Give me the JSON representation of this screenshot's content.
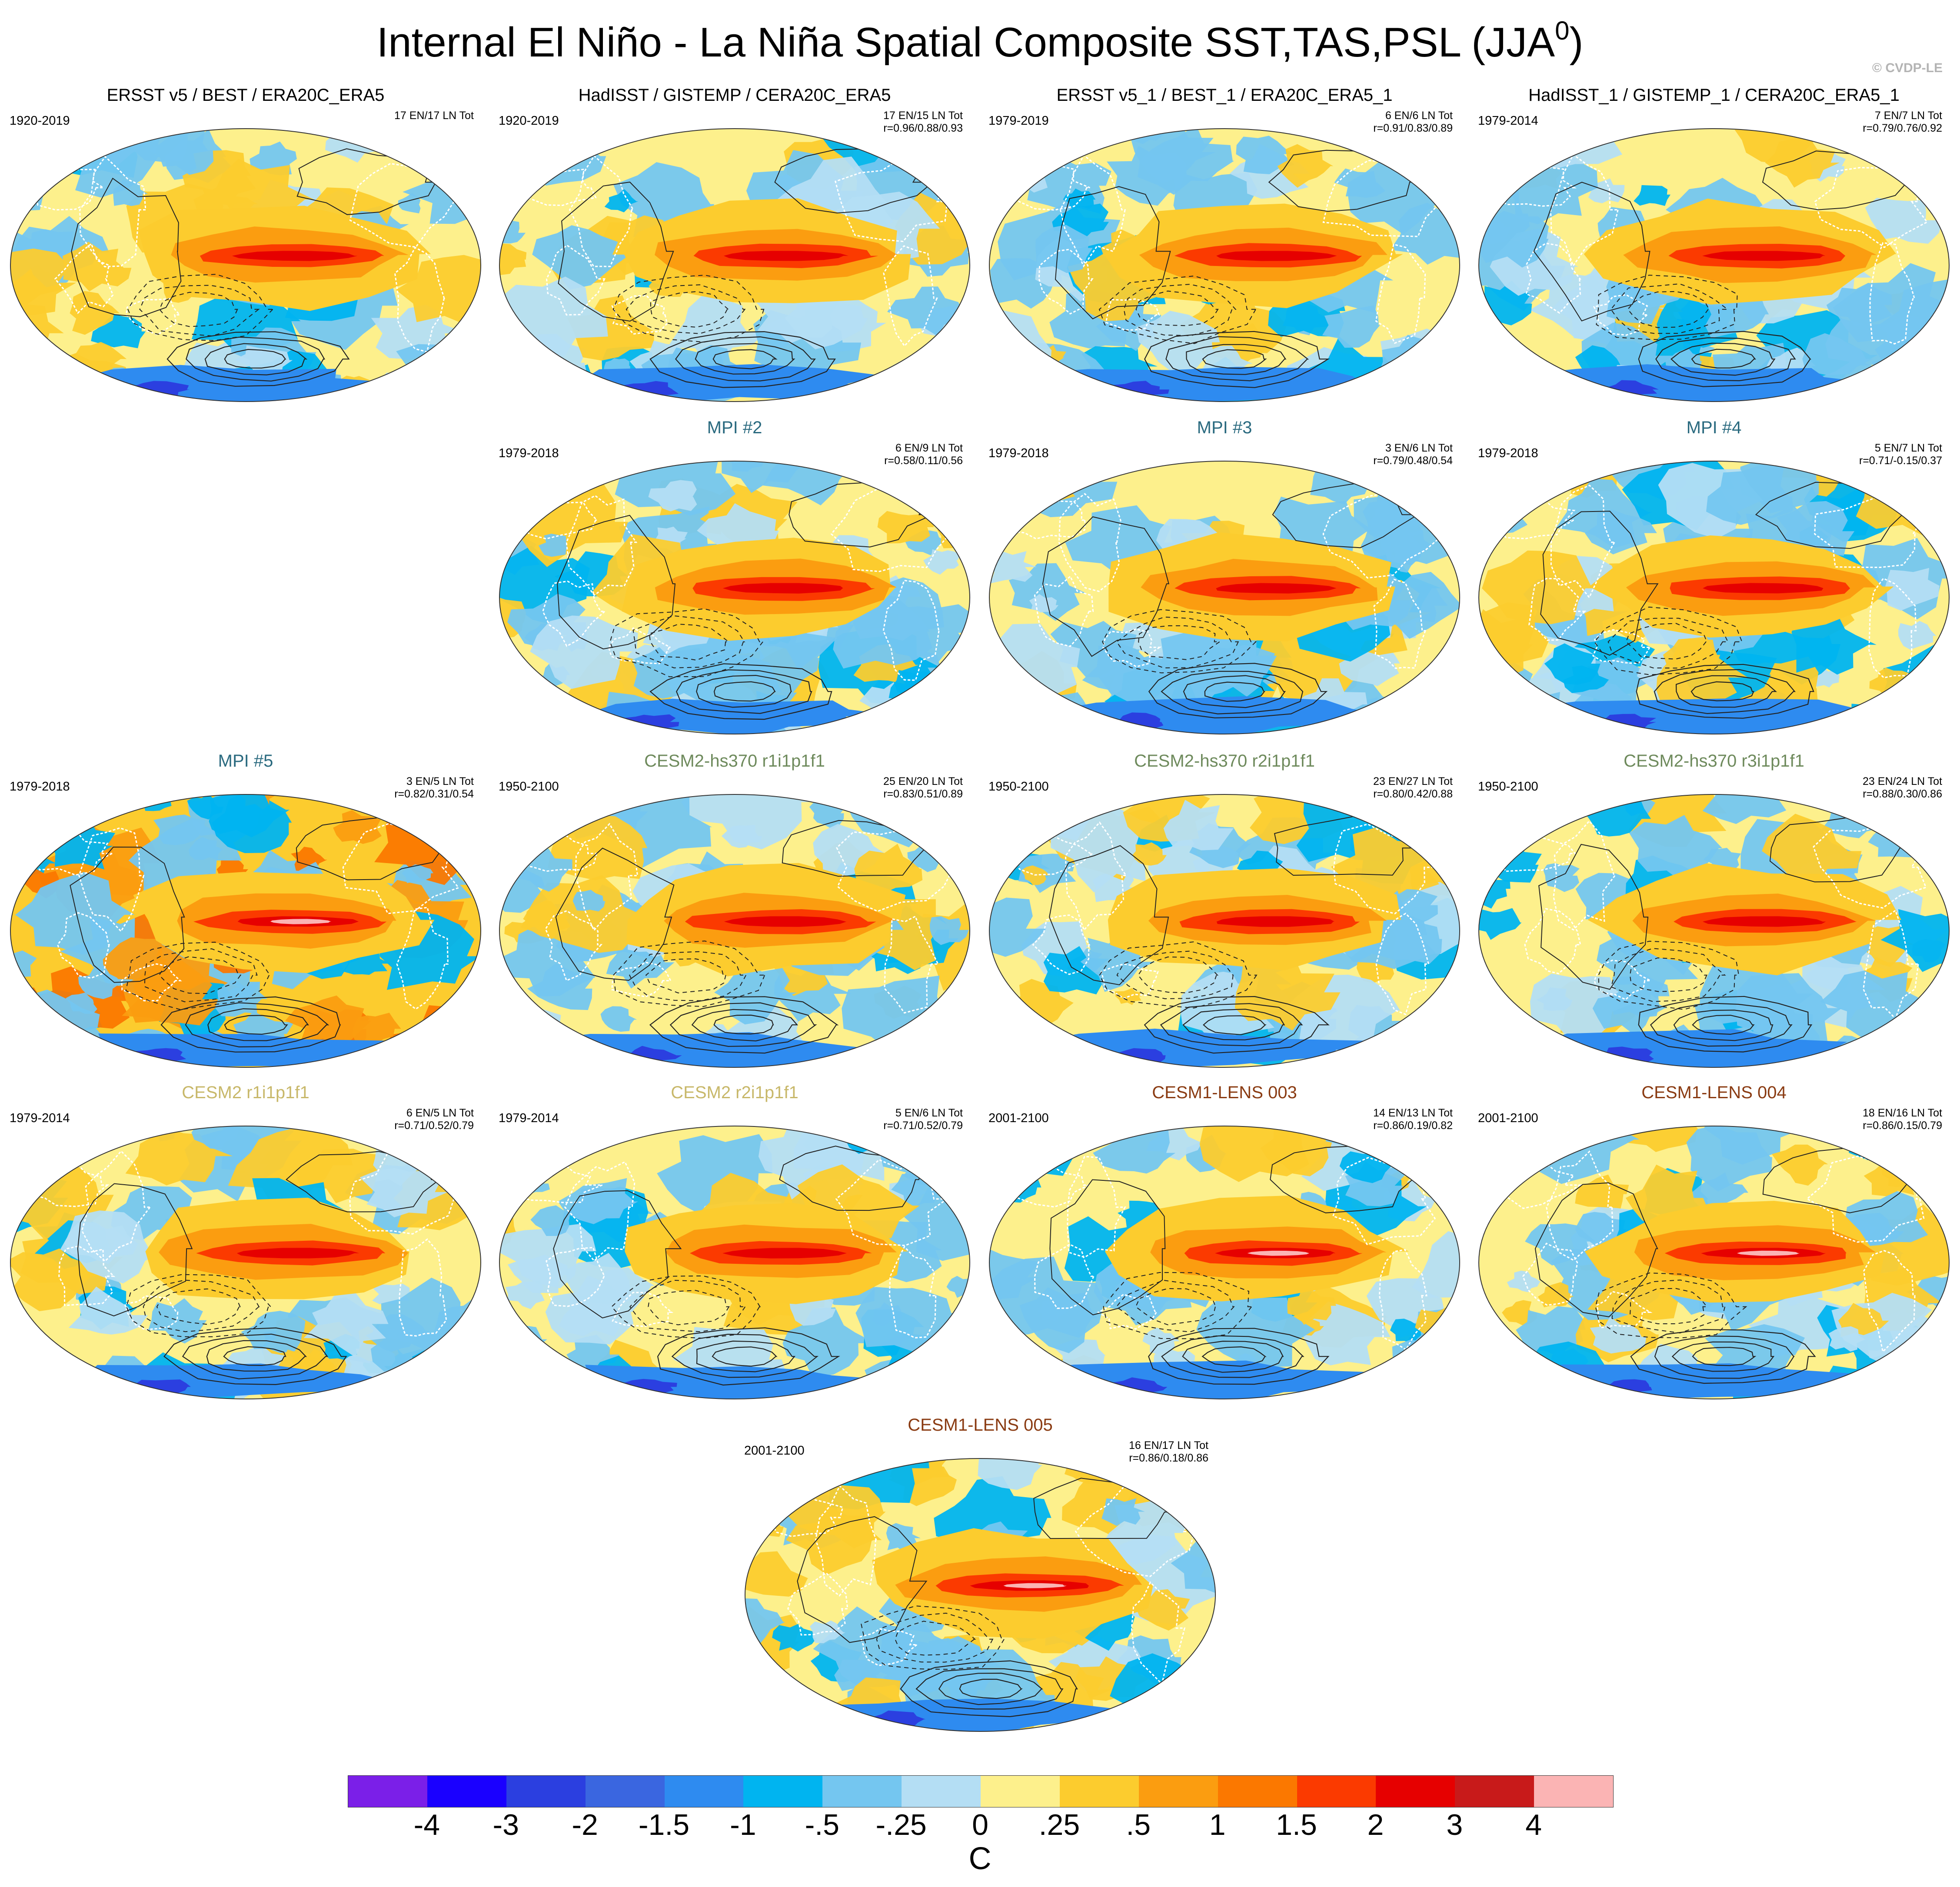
{
  "title": "Internal El Niño - La Niña Spatial Composite SST,TAS,PSL (JJA",
  "title_superscript": "0",
  "title_close": ")",
  "copyright": "© CVDP-LE",
  "panels": [
    {
      "title": "ERSST v5 / BEST / ERA20C_ERA5",
      "years": "1920-2019",
      "stats1": "17 EN/17 LN Tot",
      "stats2": "",
      "title_color": "#000000",
      "pattern": "obs"
    },
    {
      "title": "HadISST / GISTEMP / CERA20C_ERA5",
      "years": "1920-2019",
      "stats1": "17 EN/15 LN Tot",
      "stats2": "r=0.96/0.88/0.93",
      "title_color": "#000000",
      "pattern": "obs"
    },
    {
      "title": "ERSST v5_1 / BEST_1 / ERA20C_ERA5_1",
      "years": "1979-2019",
      "stats1": "6 EN/6 LN Tot",
      "stats2": "r=0.91/0.83/0.89",
      "title_color": "#000000",
      "pattern": "obs"
    },
    {
      "title": "HadISST_1 / GISTEMP_1 / CERA20C_ERA5_1",
      "years": "1979-2014",
      "stats1": "7 EN/7 LN Tot",
      "stats2": "r=0.79/0.76/0.92",
      "title_color": "#000000",
      "pattern": "obs"
    },
    {
      "title": "MPI #2",
      "years": "1979-2018",
      "stats1": "6 EN/9 LN Tot",
      "stats2": "r=0.58/0.11/0.56",
      "title_color": "#2a6a7f",
      "pattern": "mpi"
    },
    {
      "title": "MPI #3",
      "years": "1979-2018",
      "stats1": "3 EN/6 LN Tot",
      "stats2": "r=0.79/0.48/0.54",
      "title_color": "#2a6a7f",
      "pattern": "mpi"
    },
    {
      "title": "MPI #4",
      "years": "1979-2018",
      "stats1": "5 EN/7 LN Tot",
      "stats2": "r=0.71/-0.15/0.37",
      "title_color": "#2a6a7f",
      "pattern": "mpi"
    },
    {
      "title": "MPI #5",
      "years": "1979-2018",
      "stats1": "3 EN/5 LN Tot",
      "stats2": "r=0.82/0.31/0.54",
      "title_color": "#2a6a7f",
      "pattern": "mpi5"
    },
    {
      "title": "CESM2-hs370 r1i1p1f1",
      "years": "1950-2100",
      "stats1": "25 EN/20 LN Tot",
      "stats2": "r=0.83/0.51/0.89",
      "title_color": "#6e8a5c",
      "pattern": "cesm2"
    },
    {
      "title": "CESM2-hs370 r2i1p1f1",
      "years": "1950-2100",
      "stats1": "23 EN/27 LN Tot",
      "stats2": "r=0.80/0.42/0.88",
      "title_color": "#6e8a5c",
      "pattern": "cesm2"
    },
    {
      "title": "CESM2-hs370 r3i1p1f1",
      "years": "1950-2100",
      "stats1": "23 EN/24 LN Tot",
      "stats2": "r=0.88/0.30/0.86",
      "title_color": "#6e8a5c",
      "pattern": "cesm2"
    },
    {
      "title": "CESM2 r1i1p1f1",
      "years": "1979-2014",
      "stats1": "6 EN/5 LN Tot",
      "stats2": "r=0.71/0.52/0.79",
      "title_color": "#c8b86a",
      "pattern": "cesm2"
    },
    {
      "title": "CESM2 r2i1p1f1",
      "years": "1979-2014",
      "stats1": "5 EN/6 LN Tot",
      "stats2": "r=0.71/0.52/0.79",
      "title_color": "#c8b86a",
      "pattern": "cesm2"
    },
    {
      "title": "CESM1-LENS 003",
      "years": "2001-2100",
      "stats1": "14 EN/13 LN Tot",
      "stats2": "r=0.86/0.19/0.82",
      "title_color": "#8a3b12",
      "pattern": "lens"
    },
    {
      "title": "CESM1-LENS 004",
      "years": "2001-2100",
      "stats1": "18 EN/16 LN Tot",
      "stats2": "r=0.86/0.15/0.79",
      "title_color": "#8a3b12",
      "pattern": "lens"
    },
    {
      "title": "CESM1-LENS 005",
      "years": "2001-2100",
      "stats1": "16 EN/17 LN Tot",
      "stats2": "r=0.86/0.18/0.86",
      "title_color": "#8a3b12",
      "pattern": "lens"
    }
  ],
  "colorbar": {
    "colors": [
      "#7b1fe8",
      "#1a00ff",
      "#2b3fe0",
      "#3a66e0",
      "#2e8bf0",
      "#00b4f0",
      "#74c6f0",
      "#b4def4",
      "#fdf08c",
      "#fccc2e",
      "#fb9d10",
      "#fb7800",
      "#fb3a00",
      "#e60000",
      "#c81a1a",
      "#fbb4b4"
    ],
    "labels": [
      "-4",
      "-3",
      "-2",
      "-1.5",
      "-1",
      "-.5",
      "-.25",
      "0",
      ".25",
      ".5",
      "1",
      "1.5",
      "2",
      "3",
      "4"
    ],
    "units": "C"
  }
}
